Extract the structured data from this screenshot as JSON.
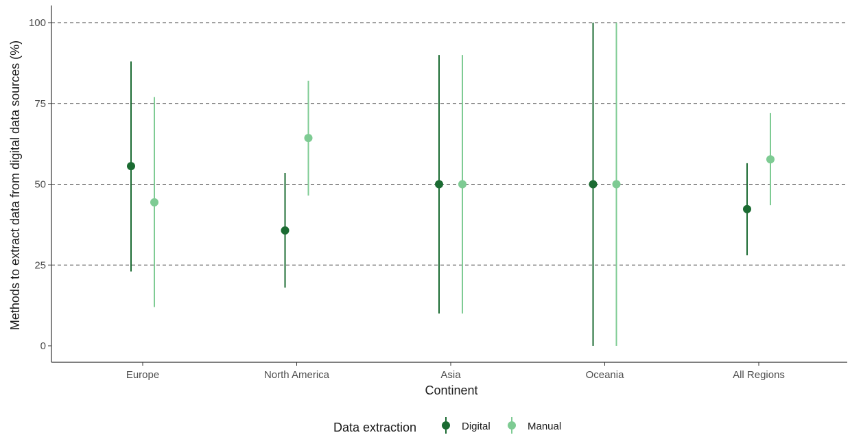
{
  "chart_data": {
    "type": "scatter",
    "subtype": "point-range",
    "title": "",
    "xlabel": "Continent",
    "ylabel": "Methods to extract data from digital data sources (%)",
    "categories": [
      "Europe",
      "North America",
      "Asia",
      "Oceania",
      "All Regions"
    ],
    "ylim": [
      0,
      100
    ],
    "yticks": [
      0,
      25,
      50,
      75,
      100
    ],
    "ytick_labels": [
      "0",
      "25",
      "50",
      "75",
      "100"
    ],
    "grid": "horizontal dashed at major ticks",
    "legend": {
      "title": "Data extraction",
      "position": "bottom"
    },
    "series": [
      {
        "name": "Digital",
        "color": "#1b6b32",
        "values": [
          55.6,
          35.7,
          50,
          50,
          42.3
        ],
        "lower": [
          23,
          18,
          10,
          0,
          28
        ],
        "upper": [
          88,
          53.5,
          90,
          100,
          56.5
        ]
      },
      {
        "name": "Manual",
        "color": "#7ecb93",
        "values": [
          44.4,
          64.3,
          50,
          50,
          57.7
        ],
        "lower": [
          12,
          46.5,
          10,
          0,
          43.5
        ],
        "upper": [
          77,
          82,
          90,
          100,
          72
        ]
      }
    ]
  }
}
